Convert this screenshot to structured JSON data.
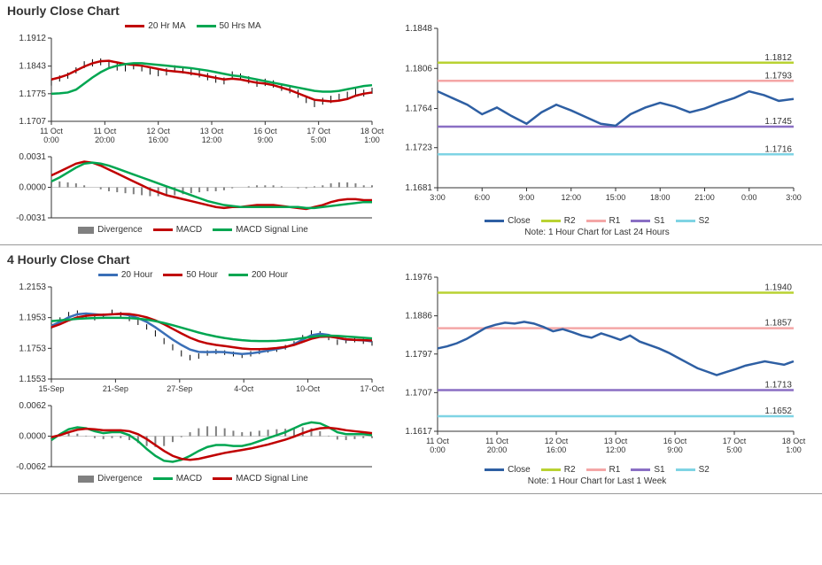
{
  "sections": {
    "hourly": {
      "title": "Hourly Close Chart",
      "price_chart": {
        "type": "line",
        "ylim": [
          1.1707,
          1.1912
        ],
        "yticks": [
          1.1707,
          1.1775,
          1.1843,
          1.1912
        ],
        "xticks": [
          "11 Oct\n0:00",
          "11 Oct\n20:00",
          "12 Oct\n16:00",
          "13 Oct\n12:00",
          "16 Oct\n9:00",
          "17 Oct\n5:00",
          "18 Oct\n1:00"
        ],
        "legend": [
          {
            "label": "20 Hr MA",
            "color": "#c00000",
            "type": "line"
          },
          {
            "label": "50 Hrs MA",
            "color": "#00a651",
            "type": "line"
          }
        ],
        "series": {
          "candles_high": [
            1.181,
            1.182,
            1.1827,
            1.184,
            1.1855,
            1.186,
            1.1862,
            1.1857,
            1.185,
            1.1848,
            1.185,
            1.1846,
            1.184,
            1.1835,
            1.1838,
            1.1845,
            1.1842,
            1.1838,
            1.1834,
            1.1826,
            1.182,
            1.1815,
            1.183,
            1.1825,
            1.1818,
            1.181,
            1.1812,
            1.1808,
            1.18,
            1.1795,
            1.1785,
            1.177,
            1.176,
            1.1765,
            1.177,
            1.1775,
            1.178,
            1.179,
            1.1785,
            1.179
          ],
          "candles_low": [
            1.1795,
            1.1805,
            1.1812,
            1.1825,
            1.1838,
            1.1842,
            1.1845,
            1.184,
            1.1832,
            1.183,
            1.1835,
            1.183,
            1.1822,
            1.1818,
            1.182,
            1.1828,
            1.1825,
            1.182,
            1.1815,
            1.1808,
            1.1802,
            1.1798,
            1.1812,
            1.1808,
            1.18,
            1.1792,
            1.1794,
            1.179,
            1.1782,
            1.1776,
            1.1765,
            1.1752,
            1.1742,
            1.1748,
            1.1752,
            1.1758,
            1.1762,
            1.1772,
            1.1768,
            1.1775
          ],
          "ma20": [
            1.181,
            1.1815,
            1.1822,
            1.1832,
            1.1842,
            1.185,
            1.1855,
            1.1856,
            1.1852,
            1.1848,
            1.1846,
            1.1844,
            1.184,
            1.1836,
            1.1832,
            1.183,
            1.1828,
            1.1825,
            1.1822,
            1.1818,
            1.1814,
            1.181,
            1.1812,
            1.181,
            1.1806,
            1.1802,
            1.18,
            1.1796,
            1.179,
            1.1784,
            1.1776,
            1.1768,
            1.176,
            1.1758,
            1.1756,
            1.1758,
            1.1762,
            1.177,
            1.1775,
            1.1778
          ],
          "ma50": [
            1.1775,
            1.1776,
            1.1778,
            1.1785,
            1.18,
            1.1815,
            1.1828,
            1.1838,
            1.1844,
            1.1848,
            1.185,
            1.185,
            1.1848,
            1.1846,
            1.1844,
            1.1842,
            1.184,
            1.1838,
            1.1835,
            1.1832,
            1.1828,
            1.1824,
            1.182,
            1.1818,
            1.1814,
            1.181,
            1.1806,
            1.1802,
            1.1798,
            1.1794,
            1.179,
            1.1786,
            1.1782,
            1.178,
            1.178,
            1.1782,
            1.1786,
            1.179,
            1.1794,
            1.1796
          ],
          "ma20_color": "#c00000",
          "ma50_color": "#00a651"
        }
      },
      "macd_chart": {
        "type": "line",
        "ylim": [
          -0.0031,
          0.0031
        ],
        "yticks": [
          -0.0031,
          0.0,
          0.0031
        ],
        "legend": [
          {
            "label": "Divergence",
            "color": "#808080",
            "type": "bar"
          },
          {
            "label": "MACD",
            "color": "#c00000",
            "type": "line"
          },
          {
            "label": "MACD Signal Line",
            "color": "#00a651",
            "type": "line"
          }
        ],
        "series": {
          "macd": [
            0.0012,
            0.0016,
            0.002,
            0.0024,
            0.0026,
            0.0025,
            0.0022,
            0.0018,
            0.0014,
            0.001,
            0.0006,
            0.0002,
            -0.0002,
            -0.0005,
            -0.0008,
            -0.001,
            -0.0012,
            -0.0014,
            -0.0016,
            -0.0018,
            -0.002,
            -0.0021,
            -0.002,
            -0.002,
            -0.0019,
            -0.0018,
            -0.0018,
            -0.0018,
            -0.0019,
            -0.002,
            -0.0021,
            -0.0022,
            -0.002,
            -0.0018,
            -0.0015,
            -0.0013,
            -0.0012,
            -0.0012,
            -0.0013,
            -0.0013
          ],
          "signal": [
            0.0006,
            0.001,
            0.0015,
            0.002,
            0.0024,
            0.0025,
            0.0024,
            0.0022,
            0.0019,
            0.0016,
            0.0013,
            0.001,
            0.0007,
            0.0004,
            0.0001,
            -0.0002,
            -0.0005,
            -0.0008,
            -0.0011,
            -0.0014,
            -0.0016,
            -0.0018,
            -0.0019,
            -0.002,
            -0.002,
            -0.002,
            -0.002,
            -0.002,
            -0.002,
            -0.002,
            -0.002,
            -0.0021,
            -0.0021,
            -0.002,
            -0.0019,
            -0.0018,
            -0.0017,
            -0.0016,
            -0.0015,
            -0.0015
          ],
          "divergence": [
            0.0006,
            0.0006,
            0.0005,
            0.0004,
            0.0002,
            0.0,
            -0.0002,
            -0.0004,
            -0.0005,
            -0.0006,
            -0.0007,
            -0.0008,
            -0.0009,
            -0.0009,
            -0.0009,
            -0.0008,
            -0.0007,
            -0.0006,
            -0.0005,
            -0.0004,
            -0.0004,
            -0.0003,
            -0.0001,
            0.0,
            0.0001,
            0.0002,
            0.0002,
            0.0002,
            0.0001,
            0.0,
            -0.0001,
            -0.0001,
            0.0001,
            0.0002,
            0.0004,
            0.0005,
            0.0005,
            0.0004,
            0.0002,
            0.0002
          ],
          "macd_color": "#c00000",
          "signal_color": "#00a651",
          "div_color": "#808080"
        }
      },
      "sr_chart": {
        "type": "line",
        "ylim": [
          1.1681,
          1.1848
        ],
        "yticks": [
          1.1681,
          1.1723,
          1.1764,
          1.1806,
          1.1848
        ],
        "xticks": [
          "3:00",
          "6:00",
          "9:00",
          "12:00",
          "15:00",
          "18:00",
          "21:00",
          "0:00",
          "3:00"
        ],
        "levels": {
          "R2": {
            "value": 1.1812,
            "color": "#b9d232"
          },
          "R1": {
            "value": 1.1793,
            "color": "#f4a6a6"
          },
          "S1": {
            "value": 1.1745,
            "color": "#8a6fc4"
          },
          "S2": {
            "value": 1.1716,
            "color": "#7fd4e4"
          }
        },
        "close": [
          1.1782,
          1.1775,
          1.1768,
          1.1758,
          1.1765,
          1.1756,
          1.1748,
          1.176,
          1.1768,
          1.1762,
          1.1755,
          1.1748,
          1.1746,
          1.1758,
          1.1765,
          1.177,
          1.1766,
          1.176,
          1.1764,
          1.177,
          1.1775,
          1.1782,
          1.1778,
          1.1772,
          1.1774
        ],
        "close_color": "#2e5fa3",
        "legend": [
          {
            "label": "Close",
            "color": "#2e5fa3",
            "type": "line"
          },
          {
            "label": "R2",
            "color": "#b9d232",
            "type": "line"
          },
          {
            "label": "R1",
            "color": "#f4a6a6",
            "type": "line"
          },
          {
            "label": "S1",
            "color": "#8a6fc4",
            "type": "line"
          },
          {
            "label": "S2",
            "color": "#7fd4e4",
            "type": "line"
          }
        ],
        "note": "Note: 1 Hour Chart for Last 24 Hours"
      }
    },
    "four_hourly": {
      "title": "4 Hourly Close Chart",
      "price_chart": {
        "type": "line",
        "ylim": [
          1.1553,
          1.2153
        ],
        "yticks": [
          1.1553,
          1.1753,
          1.1953,
          1.2153
        ],
        "xticks": [
          "15-Sep",
          "21-Sep",
          "27-Sep",
          "4-Oct",
          "10-Oct",
          "17-Oct"
        ],
        "legend": [
          {
            "label": "20 Hour",
            "color": "#3a6fb7",
            "type": "line"
          },
          {
            "label": "50 Hour",
            "color": "#c00000",
            "type": "line"
          },
          {
            "label": "200 Hour",
            "color": "#00a651",
            "type": "line"
          }
        ],
        "series": {
          "candles_high": [
            1.192,
            1.1955,
            1.199,
            1.2,
            1.1985,
            1.197,
            1.198,
            1.2005,
            1.199,
            1.1965,
            1.194,
            1.191,
            1.187,
            1.182,
            1.178,
            1.174,
            1.171,
            1.172,
            1.174,
            1.1748,
            1.174,
            1.1732,
            1.172,
            1.1735,
            1.1748,
            1.1756,
            1.176,
            1.1775,
            1.18,
            1.184,
            1.187,
            1.1865,
            1.184,
            1.181,
            1.182,
            1.1825,
            1.1815,
            1.18
          ],
          "candles_low": [
            1.188,
            1.192,
            1.1955,
            1.1965,
            1.195,
            1.1935,
            1.1945,
            1.197,
            1.1955,
            1.193,
            1.1905,
            1.1875,
            1.183,
            1.178,
            1.174,
            1.17,
            1.1675,
            1.1685,
            1.1705,
            1.1715,
            1.171,
            1.17,
            1.169,
            1.17,
            1.1715,
            1.1725,
            1.173,
            1.1745,
            1.177,
            1.1805,
            1.1835,
            1.183,
            1.1806,
            1.1775,
            1.1786,
            1.1792,
            1.1782,
            1.177
          ],
          "ma20": [
            1.19,
            1.1925,
            1.1955,
            1.1975,
            1.198,
            1.1975,
            1.197,
            1.1975,
            1.1978,
            1.1968,
            1.195,
            1.1925,
            1.189,
            1.185,
            1.181,
            1.1775,
            1.1745,
            1.173,
            1.1728,
            1.173,
            1.1728,
            1.1722,
            1.1716,
            1.172,
            1.1728,
            1.1738,
            1.1748,
            1.176,
            1.178,
            1.181,
            1.1838,
            1.1848,
            1.184,
            1.182,
            1.181,
            1.1808,
            1.1805,
            1.1798
          ],
          "ma50": [
            1.189,
            1.191,
            1.1935,
            1.1955,
            1.1965,
            1.197,
            1.1972,
            1.1975,
            1.1978,
            1.1976,
            1.1968,
            1.1955,
            1.1935,
            1.191,
            1.188,
            1.185,
            1.1822,
            1.18,
            1.1785,
            1.1775,
            1.1768,
            1.176,
            1.1752,
            1.1748,
            1.1748,
            1.175,
            1.1755,
            1.1762,
            1.1775,
            1.1795,
            1.1815,
            1.1828,
            1.183,
            1.1822,
            1.1812,
            1.1808,
            1.1806,
            1.1804
          ],
          "ma200": [
            1.193,
            1.1935,
            1.194,
            1.1945,
            1.1948,
            1.195,
            1.1952,
            1.1952,
            1.1952,
            1.195,
            1.1946,
            1.194,
            1.193,
            1.1918,
            1.1904,
            1.1888,
            1.1872,
            1.1856,
            1.1842,
            1.183,
            1.182,
            1.1812,
            1.1806,
            1.1802,
            1.18,
            1.18,
            1.1802,
            1.1806,
            1.1812,
            1.182,
            1.1828,
            1.1834,
            1.1836,
            1.1834,
            1.183,
            1.1826,
            1.1822,
            1.1818
          ],
          "ma20_color": "#3a6fb7",
          "ma50_color": "#c00000",
          "ma200_color": "#00a651"
        }
      },
      "macd_chart": {
        "type": "line",
        "ylim": [
          -0.0062,
          0.0062
        ],
        "yticks": [
          -0.0062,
          0.0,
          0.0062
        ],
        "legend": [
          {
            "label": "Divergence",
            "color": "#808080",
            "type": "bar"
          },
          {
            "label": "MACD",
            "color": "#00a651",
            "type": "line"
          },
          {
            "label": "MACD Signal Line",
            "color": "#c00000",
            "type": "line"
          }
        ],
        "series": {
          "macd": [
            -0.0008,
            0.0004,
            0.0014,
            0.0018,
            0.0016,
            0.001,
            0.0006,
            0.0008,
            0.0008,
            0.0002,
            -0.001,
            -0.0026,
            -0.004,
            -0.005,
            -0.0052,
            -0.0048,
            -0.004,
            -0.003,
            -0.0022,
            -0.0018,
            -0.0018,
            -0.002,
            -0.002,
            -0.0016,
            -0.001,
            -0.0004,
            0.0002,
            0.0008,
            0.0016,
            0.0024,
            0.0028,
            0.0026,
            0.0018,
            0.0008,
            0.0004,
            0.0004,
            0.0004,
            0.0002
          ],
          "signal": [
            -0.0002,
            0.0002,
            0.0008,
            0.0013,
            0.0015,
            0.0014,
            0.0012,
            0.0012,
            0.0012,
            0.001,
            0.0004,
            -0.0006,
            -0.0018,
            -0.003,
            -0.004,
            -0.0046,
            -0.0048,
            -0.0046,
            -0.0042,
            -0.0038,
            -0.0034,
            -0.0031,
            -0.0028,
            -0.0025,
            -0.0021,
            -0.0017,
            -0.0012,
            -0.0007,
            -0.0001,
            0.0006,
            0.0012,
            0.0016,
            0.0017,
            0.0015,
            0.0012,
            0.001,
            0.0008,
            0.0006
          ],
          "divergence": [
            -0.0006,
            0.0002,
            0.0006,
            0.0005,
            0.0001,
            -0.0004,
            -0.0006,
            -0.0004,
            -0.0004,
            -0.0008,
            -0.0014,
            -0.002,
            -0.0022,
            -0.002,
            -0.0012,
            -0.0002,
            0.0008,
            0.0016,
            0.002,
            0.002,
            0.0016,
            0.0011,
            0.0008,
            0.0009,
            0.0011,
            0.0013,
            0.0014,
            0.0015,
            0.0017,
            0.0018,
            0.0016,
            0.001,
            0.0001,
            -0.0007,
            -0.0008,
            -0.0006,
            -0.0004,
            -0.0004
          ],
          "macd_color": "#00a651",
          "signal_color": "#c00000",
          "div_color": "#808080"
        }
      },
      "sr_chart": {
        "type": "line",
        "ylim": [
          1.1617,
          1.1976
        ],
        "yticks": [
          1.1617,
          1.1707,
          1.1797,
          1.1886,
          1.1976
        ],
        "xticks": [
          "11 Oct\n0:00",
          "11 Oct\n20:00",
          "12 Oct\n16:00",
          "13 Oct\n12:00",
          "16 Oct\n9:00",
          "17 Oct\n5:00",
          "18 Oct\n1:00"
        ],
        "levels": {
          "R2": {
            "value": 1.194,
            "color": "#b9d232"
          },
          "R1": {
            "value": 1.1857,
            "color": "#f4a6a6"
          },
          "S1": {
            "value": 1.1713,
            "color": "#8a6fc4"
          },
          "S2": {
            "value": 1.1652,
            "color": "#7fd4e4"
          }
        },
        "close": [
          1.181,
          1.1815,
          1.1822,
          1.1832,
          1.1845,
          1.1858,
          1.1865,
          1.187,
          1.1868,
          1.1872,
          1.1868,
          1.186,
          1.185,
          1.1855,
          1.1848,
          1.184,
          1.1835,
          1.1845,
          1.1838,
          1.183,
          1.184,
          1.1826,
          1.1818,
          1.181,
          1.18,
          1.1788,
          1.1776,
          1.1764,
          1.1756,
          1.1748,
          1.1755,
          1.1762,
          1.177,
          1.1775,
          1.178,
          1.1776,
          1.1772,
          1.178
        ],
        "close_color": "#2e5fa3",
        "legend": [
          {
            "label": "Close",
            "color": "#2e5fa3",
            "type": "line"
          },
          {
            "label": "R2",
            "color": "#b9d232",
            "type": "line"
          },
          {
            "label": "R1",
            "color": "#f4a6a6",
            "type": "line"
          },
          {
            "label": "S1",
            "color": "#8a6fc4",
            "type": "line"
          },
          {
            "label": "S2",
            "color": "#7fd4e4",
            "type": "line"
          }
        ],
        "note": "Note: 1 Hour Chart for Last 1 Week"
      }
    }
  },
  "colors": {
    "grid": "#cccccc",
    "axis": "#333333",
    "bg": "#ffffff"
  },
  "fonts": {
    "title_size": 14,
    "axis_size": 10,
    "legend_size": 10
  }
}
